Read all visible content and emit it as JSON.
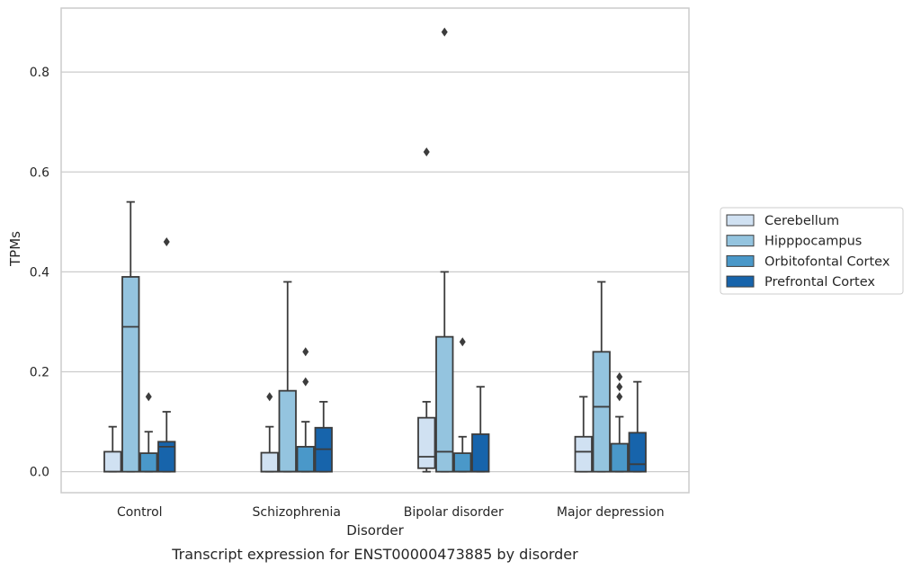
{
  "chart_data": {
    "type": "box",
    "caption": "Transcript expression for ENST00000473885 by disorder",
    "xlabel": "Disorder",
    "ylabel": "TPMs",
    "ylim": [
      -0.042,
      0.928
    ],
    "yticks": [
      0.0,
      0.2,
      0.4,
      0.6,
      0.8
    ],
    "ytick_labels": [
      "0.0",
      "0.2",
      "0.4",
      "0.6",
      "0.8"
    ],
    "grid": "horizontal",
    "legend_position": "right",
    "categories": [
      "Control",
      "Schizophrenia",
      "Bipolar disorder",
      "Major depression"
    ],
    "series": [
      {
        "name": "Cerebellum",
        "color": "#d0e1f2",
        "boxes": [
          {
            "whislo": 0.0,
            "q1": 0.0,
            "med": 0.0,
            "q3": 0.04,
            "whishi": 0.09,
            "fliers": []
          },
          {
            "whislo": 0.0,
            "q1": 0.0,
            "med": 0.0,
            "q3": 0.038,
            "whishi": 0.09,
            "fliers": [
              0.15
            ]
          },
          {
            "whislo": 0.0,
            "q1": 0.007,
            "med": 0.03,
            "q3": 0.108,
            "whishi": 0.14,
            "fliers": [
              0.64
            ]
          },
          {
            "whislo": 0.0,
            "q1": 0.0,
            "med": 0.04,
            "q3": 0.07,
            "whishi": 0.15,
            "fliers": []
          }
        ]
      },
      {
        "name": "Hipppocampus",
        "color": "#94c4df",
        "boxes": [
          {
            "whislo": 0.0,
            "q1": 0.0,
            "med": 0.29,
            "q3": 0.39,
            "whishi": 0.54,
            "fliers": []
          },
          {
            "whislo": 0.0,
            "q1": 0.0,
            "med": 0.0,
            "q3": 0.162,
            "whishi": 0.38,
            "fliers": []
          },
          {
            "whislo": 0.0,
            "q1": 0.0,
            "med": 0.04,
            "q3": 0.27,
            "whishi": 0.4,
            "fliers": [
              0.88
            ]
          },
          {
            "whislo": 0.0,
            "q1": 0.0,
            "med": 0.13,
            "q3": 0.24,
            "whishi": 0.38,
            "fliers": []
          }
        ]
      },
      {
        "name": "Orbitofontal Cortex",
        "color": "#4a98c9",
        "boxes": [
          {
            "whislo": 0.0,
            "q1": 0.0,
            "med": 0.0,
            "q3": 0.037,
            "whishi": 0.08,
            "fliers": [
              0.15
            ]
          },
          {
            "whislo": 0.0,
            "q1": 0.0,
            "med": 0.0,
            "q3": 0.05,
            "whishi": 0.1,
            "fliers": [
              0.18,
              0.24
            ]
          },
          {
            "whislo": 0.0,
            "q1": 0.0,
            "med": 0.0,
            "q3": 0.037,
            "whishi": 0.07,
            "fliers": [
              0.26
            ]
          },
          {
            "whislo": 0.0,
            "q1": 0.0,
            "med": 0.0,
            "q3": 0.056,
            "whishi": 0.11,
            "fliers": [
              0.15,
              0.17,
              0.19
            ]
          }
        ]
      },
      {
        "name": "Prefrontal Cortex",
        "color": "#1764ab",
        "boxes": [
          {
            "whislo": 0.0,
            "q1": 0.0,
            "med": 0.05,
            "q3": 0.06,
            "whishi": 0.12,
            "fliers": [
              0.46
            ]
          },
          {
            "whislo": 0.0,
            "q1": 0.0,
            "med": 0.045,
            "q3": 0.088,
            "whishi": 0.14,
            "fliers": []
          },
          {
            "whislo": 0.0,
            "q1": 0.0,
            "med": 0.0,
            "q3": 0.075,
            "whishi": 0.17,
            "fliers": []
          },
          {
            "whislo": 0.0,
            "q1": 0.0,
            "med": 0.015,
            "q3": 0.078,
            "whishi": 0.18,
            "fliers": []
          }
        ]
      }
    ]
  }
}
